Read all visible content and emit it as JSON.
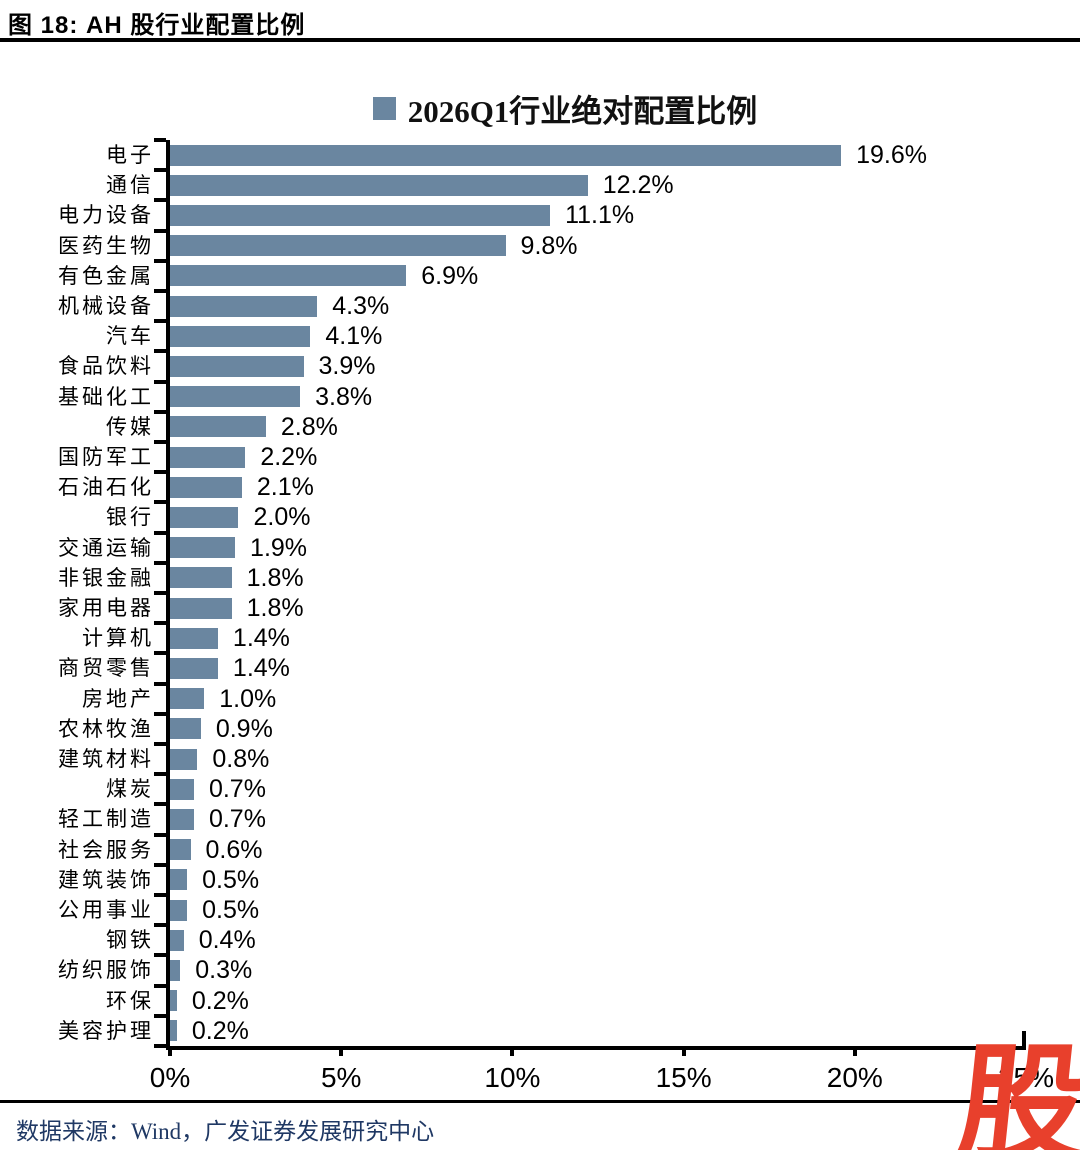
{
  "figure": {
    "caption": "图 18:  AH 股行业配置比例",
    "source": "数据来源：Wind，广发证券发展研究中心"
  },
  "chart_data": {
    "type": "bar",
    "orientation": "horizontal",
    "title": "2026Q1行业绝对配置比例",
    "legend": {
      "label": "2026Q1行业绝对配置比例",
      "position": "top-center",
      "marker_color": "#6A86A0"
    },
    "categories": [
      "电子",
      "通信",
      "电力设备",
      "医药生物",
      "有色金属",
      "机械设备",
      "汽车",
      "食品饮料",
      "基础化工",
      "传媒",
      "国防军工",
      "石油石化",
      "银行",
      "交通运输",
      "非银金融",
      "家用电器",
      "计算机",
      "商贸零售",
      "房地产",
      "农林牧渔",
      "建筑材料",
      "煤炭",
      "轻工制造",
      "社会服务",
      "建筑装饰",
      "公用事业",
      "钢铁",
      "纺织服饰",
      "环保",
      "美容护理"
    ],
    "values": [
      19.6,
      12.2,
      11.1,
      9.8,
      6.9,
      4.3,
      4.1,
      3.9,
      3.8,
      2.8,
      2.2,
      2.1,
      2.0,
      1.9,
      1.8,
      1.8,
      1.4,
      1.4,
      1.0,
      0.9,
      0.8,
      0.7,
      0.7,
      0.6,
      0.5,
      0.5,
      0.4,
      0.3,
      0.2,
      0.2
    ],
    "value_labels": [
      "19.6%",
      "12.2%",
      "11.1%",
      "9.8%",
      "6.9%",
      "4.3%",
      "4.1%",
      "3.9%",
      "3.8%",
      "2.8%",
      "2.2%",
      "2.1%",
      "2.0%",
      "1.9%",
      "1.8%",
      "1.8%",
      "1.4%",
      "1.4%",
      "1.0%",
      "0.9%",
      "0.8%",
      "0.7%",
      "0.7%",
      "0.6%",
      "0.5%",
      "0.5%",
      "0.4%",
      "0.3%",
      "0.2%",
      "0.2%"
    ],
    "bar_color": "#6A86A0",
    "xlabel": "",
    "ylabel": "",
    "xlim": [
      0,
      25
    ],
    "x_tick_values": [
      0,
      5,
      10,
      15,
      20,
      25
    ],
    "x_tick_labels": [
      "0%",
      "5%",
      "10%",
      "15%",
      "20%",
      "25%"
    ],
    "grid": "off"
  },
  "watermark": {
    "text": "股",
    "color": "#E8402C"
  }
}
